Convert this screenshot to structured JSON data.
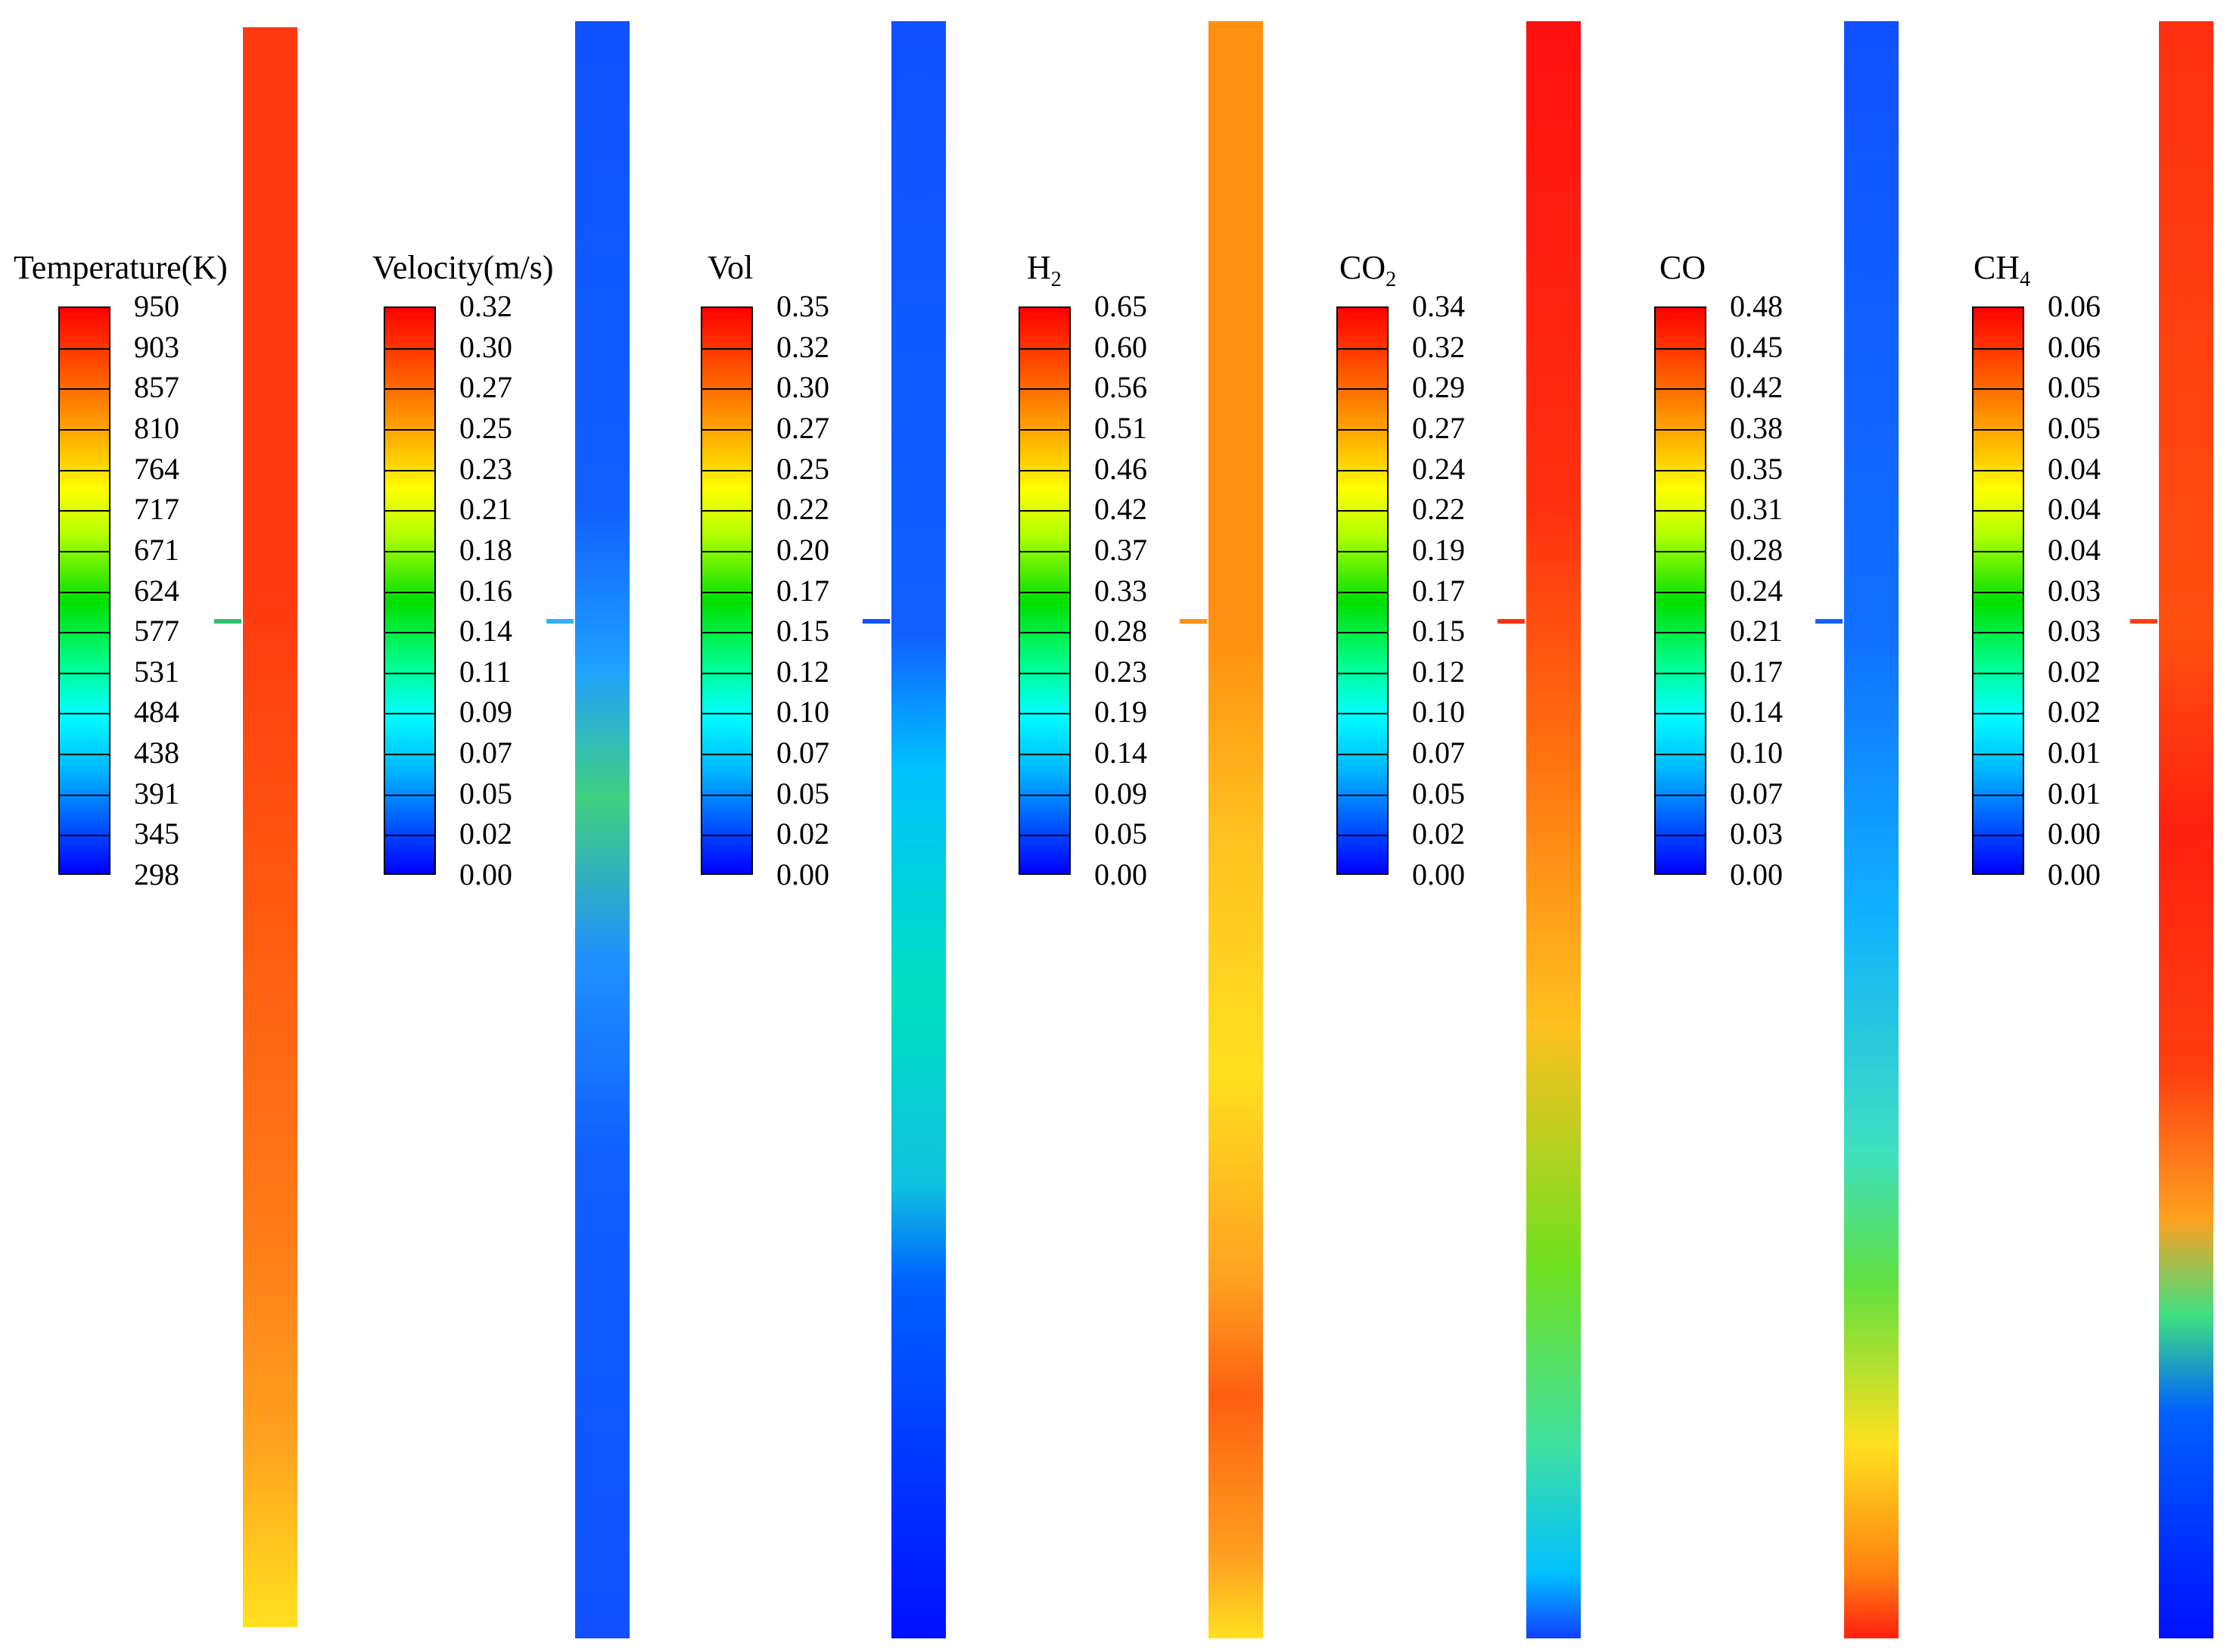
{
  "panels": [
    {
      "key": "temperature",
      "title": "Temperature(K)",
      "sub": "",
      "labels": [
        "950",
        "903",
        "857",
        "810",
        "764",
        "717",
        "671",
        "624",
        "577",
        "531",
        "484",
        "438",
        "391",
        "345",
        "298"
      ],
      "tube_gradient": "linear-gradient(to bottom,#ff3a10 0%,#ff3a10 35%,#ff5a10 55%,#ff7a18 75%,#ffa020 88%,#ffe020 100%)"
    },
    {
      "key": "velocity",
      "title": "Velocity(m/s)",
      "sub": "",
      "labels": [
        "0.32",
        "0.30",
        "0.27",
        "0.25",
        "0.23",
        "0.21",
        "0.18",
        "0.16",
        "0.14",
        "0.11",
        "0.09",
        "0.07",
        "0.05",
        "0.02",
        "0.00"
      ],
      "tube_gradient": "linear-gradient(to bottom,#1050ff 0%,#1060ff 30%,#20a0ff 40%,#40d080 48%,#2090ff 58%,#1060ff 70%,#1050ff 100%)"
    },
    {
      "key": "vol",
      "title": "Vol",
      "sub": "",
      "labels": [
        "0.35",
        "0.32",
        "0.30",
        "0.27",
        "0.25",
        "0.22",
        "0.20",
        "0.17",
        "0.15",
        "0.12",
        "0.10",
        "0.07",
        "0.05",
        "0.02",
        "0.00"
      ],
      "tube_gradient": "linear-gradient(to bottom,#1050ff 0%,#1060ff 38%,#00c0ff 46%,#00e0c0 60%,#10c0e0 72%,#0060ff 78%,#0010ff 100%)"
    },
    {
      "key": "h2",
      "title": "H",
      "sub": "2",
      "labels": [
        "0.65",
        "0.60",
        "0.56",
        "0.51",
        "0.46",
        "0.42",
        "0.37",
        "0.33",
        "0.28",
        "0.23",
        "0.19",
        "0.14",
        "0.09",
        "0.05",
        "0.00"
      ],
      "tube_gradient": "linear-gradient(to bottom,#ff9010 0%,#ff9010 38%,#ffc020 50%,#ffe020 65%,#ffa020 78%,#ff6010 85%,#ffa020 95%,#ffe020 100%)"
    },
    {
      "key": "co2",
      "title": "CO",
      "sub": "2",
      "labels": [
        "0.34",
        "0.32",
        "0.29",
        "0.27",
        "0.24",
        "0.22",
        "0.19",
        "0.17",
        "0.15",
        "0.12",
        "0.10",
        "0.07",
        "0.05",
        "0.02",
        "0.00"
      ],
      "tube_gradient": "linear-gradient(to bottom,#ff1010 0%,#ff3010 30%,#ff7010 45%,#ffc020 62%,#70e020 77%,#40e0a0 88%,#00c0ff 96%,#1040ff 100%)"
    },
    {
      "key": "co",
      "title": "CO",
      "sub": "",
      "labels": [
        "0.48",
        "0.45",
        "0.42",
        "0.38",
        "0.35",
        "0.31",
        "0.28",
        "0.24",
        "0.21",
        "0.17",
        "0.14",
        "0.10",
        "0.07",
        "0.03",
        "0.00"
      ],
      "tube_gradient": "linear-gradient(to bottom,#1050ff 0%,#1070ff 38%,#10b0ff 55%,#40e0c0 70%,#60e040 78%,#ffe020 88%,#ff8010 96%,#ff2010 100%)"
    },
    {
      "key": "ch4",
      "title": "CH",
      "sub": "4",
      "labels": [
        "0.06",
        "0.06",
        "0.05",
        "0.05",
        "0.04",
        "0.04",
        "0.04",
        "0.03",
        "0.03",
        "0.02",
        "0.02",
        "0.01",
        "0.01",
        "0.00",
        "0.00"
      ],
      "tube_gradient": "linear-gradient(to bottom,#ff3010 0%,#ff5010 38%,#ff2010 50%,#ff4010 65%,#ffa020 74%,#40e080 80%,#0060ff 86%,#0010ff 100%)"
    }
  ]
}
